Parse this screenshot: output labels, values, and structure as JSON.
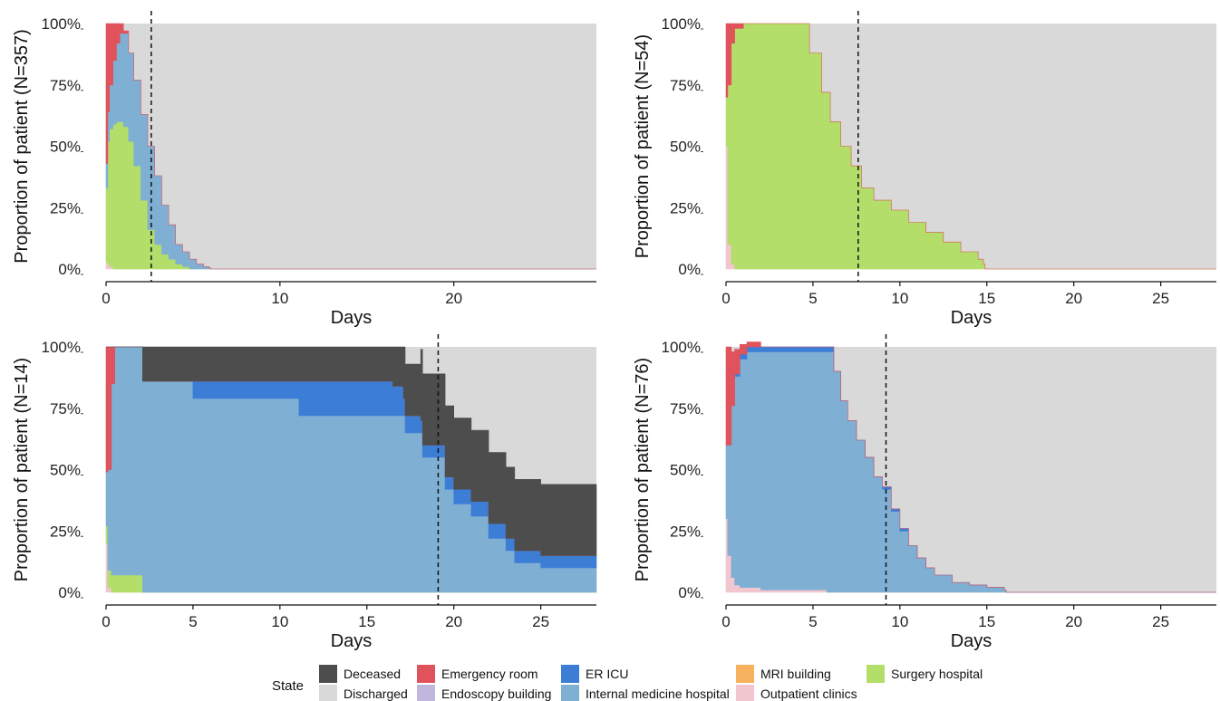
{
  "legend": {
    "title": "State",
    "items": [
      {
        "label": "Deceased",
        "color": "#4d4d4d"
      },
      {
        "label": "Discharged",
        "color": "#d9d9d9"
      },
      {
        "label": "Emergency room",
        "color": "#e0535c"
      },
      {
        "label": "Endoscopy building",
        "color": "#bfb8dc"
      },
      {
        "label": "ER ICU",
        "color": "#3c7dd6"
      },
      {
        "label": "Internal medicine hospital",
        "color": "#7fb0d3"
      },
      {
        "label": "MRI building",
        "color": "#f6b25e"
      },
      {
        "label": "Outpatient clinics",
        "color": "#f1c6cf"
      },
      {
        "label": "Surgery hospital",
        "color": "#b3de69"
      }
    ]
  },
  "chart_data": [
    {
      "type": "area",
      "ylabel": "Proportion of patient (N=357)",
      "xlabel": "Days",
      "xlim": [
        0,
        28.2
      ],
      "ylim": [
        0,
        1
      ],
      "xticks": [
        0,
        10,
        20
      ],
      "yticks": [
        "0%",
        "25%",
        "50%",
        "75%",
        "100%"
      ],
      "vline": 2.6,
      "stack_order": [
        "Outpatient clinics",
        "Surgery hospital",
        "Internal medicine hospital",
        "ER ICU",
        "Emergency room",
        "Deceased",
        "Discharged"
      ],
      "x": [
        0,
        0.1,
        0.2,
        0.4,
        0.6,
        0.8,
        1.0,
        1.3,
        1.6,
        2.0,
        2.4,
        2.8,
        3.2,
        3.6,
        4.0,
        4.4,
        4.8,
        5.2,
        5.6,
        5.9,
        6.0,
        28.2
      ],
      "stacks": {
        "Outpatient clinics": [
          0.03,
          0.02,
          0.01,
          0,
          0,
          0,
          0,
          0,
          0,
          0,
          0,
          0,
          0,
          0,
          0,
          0,
          0,
          0,
          0,
          0,
          0,
          0
        ],
        "Surgery hospital": [
          0.3,
          0.5,
          0.56,
          0.59,
          0.6,
          0.6,
          0.58,
          0.52,
          0.42,
          0.28,
          0.16,
          0.1,
          0.06,
          0.04,
          0.02,
          0.01,
          0,
          0,
          0,
          0,
          0,
          0
        ],
        "Internal medicine hospital": [
          0.1,
          0.12,
          0.18,
          0.26,
          0.32,
          0.36,
          0.38,
          0.36,
          0.35,
          0.35,
          0.34,
          0.28,
          0.2,
          0.14,
          0.08,
          0.06,
          0.04,
          0.02,
          0.01,
          0.005,
          0,
          0
        ],
        "ER ICU": [
          0,
          0,
          0,
          0,
          0,
          0,
          0,
          0,
          0,
          0,
          0,
          0,
          0,
          0,
          0,
          0,
          0,
          0,
          0,
          0,
          0,
          0
        ],
        "Emergency room": [
          0.57,
          0.36,
          0.25,
          0.15,
          0.08,
          0.04,
          0.01,
          0,
          0,
          0,
          0,
          0,
          0,
          0,
          0,
          0,
          0,
          0,
          0,
          0,
          0,
          0
        ],
        "Deceased": [
          0,
          0,
          0,
          0,
          0,
          0,
          0,
          0,
          0,
          0,
          0,
          0,
          0,
          0,
          0,
          0,
          0,
          0,
          0,
          0,
          0,
          0
        ]
      }
    },
    {
      "type": "area",
      "ylabel": "Proportion of patient (N=54)",
      "xlabel": "Days",
      "xlim": [
        0,
        28.2
      ],
      "ylim": [
        0,
        1
      ],
      "xticks": [
        0,
        5,
        10,
        15,
        20,
        25
      ],
      "yticks": [
        "0%",
        "25%",
        "50%",
        "75%",
        "100%"
      ],
      "vline": 7.6,
      "stack_order": [
        "Outpatient clinics",
        "Surgery hospital",
        "Internal medicine hospital",
        "ER ICU",
        "Emergency room",
        "Deceased",
        "Discharged"
      ],
      "x": [
        0,
        0.1,
        0.3,
        0.5,
        1.0,
        2.0,
        3.0,
        4.0,
        4.8,
        5.5,
        6.0,
        6.6,
        7.2,
        7.8,
        8.5,
        9.5,
        10.5,
        11.5,
        12.5,
        13.5,
        14.5,
        14.8,
        14.9,
        28.2
      ],
      "stacks": {
        "Outpatient clinics": [
          0.5,
          0.1,
          0.02,
          0,
          0,
          0,
          0,
          0,
          0,
          0,
          0,
          0,
          0,
          0,
          0,
          0,
          0,
          0,
          0,
          0,
          0,
          0,
          0,
          0
        ],
        "Surgery hospital": [
          0.2,
          0.65,
          0.9,
          0.98,
          1.0,
          1.0,
          1.0,
          1.0,
          0.88,
          0.72,
          0.6,
          0.5,
          0.42,
          0.33,
          0.28,
          0.24,
          0.19,
          0.15,
          0.11,
          0.07,
          0.04,
          0.02,
          0,
          0
        ],
        "Internal medicine hospital": [
          0,
          0,
          0,
          0,
          0,
          0,
          0,
          0,
          0,
          0,
          0,
          0,
          0,
          0,
          0,
          0,
          0,
          0,
          0,
          0,
          0,
          0,
          0,
          0
        ],
        "ER ICU": [
          0,
          0,
          0,
          0,
          0,
          0,
          0,
          0,
          0,
          0,
          0,
          0,
          0,
          0,
          0,
          0,
          0,
          0,
          0,
          0,
          0,
          0,
          0,
          0
        ],
        "Emergency room": [
          0.3,
          0.25,
          0.08,
          0.02,
          0,
          0,
          0,
          0,
          0,
          0,
          0,
          0,
          0,
          0,
          0,
          0,
          0,
          0,
          0,
          0,
          0,
          0,
          0,
          0
        ],
        "Deceased": [
          0,
          0,
          0,
          0,
          0,
          0,
          0,
          0,
          0,
          0,
          0,
          0,
          0,
          0,
          0,
          0,
          0,
          0,
          0,
          0,
          0,
          0,
          0,
          0
        ]
      }
    },
    {
      "type": "area",
      "ylabel": "Proportion of patient (N=14)",
      "xlabel": "Days",
      "xlim": [
        0,
        28.2
      ],
      "ylim": [
        0,
        1
      ],
      "xticks": [
        0,
        5,
        10,
        15,
        20,
        25
      ],
      "yticks": [
        "0%",
        "25%",
        "50%",
        "75%",
        "100%"
      ],
      "vline": 19.1,
      "stack_order": [
        "Outpatient clinics",
        "Surgery hospital",
        "Internal medicine hospital",
        "ER ICU",
        "Emergency room",
        "Deceased",
        "Discharged"
      ],
      "x": [
        0,
        0.1,
        0.3,
        0.5,
        1.0,
        1.5,
        2.0,
        2.1,
        4.9,
        5.0,
        11.0,
        11.1,
        15.5,
        16.0,
        16.5,
        17.1,
        17.2,
        18.1,
        18.2,
        19.0,
        19.5,
        20.0,
        21.0,
        22.0,
        23.0,
        23.5,
        25.0,
        28.0,
        28.2
      ],
      "stacks": {
        "Outpatient clinics": [
          0.2,
          0.02,
          0,
          0,
          0,
          0,
          0,
          0,
          0,
          0,
          0,
          0,
          0,
          0,
          0,
          0,
          0,
          0,
          0,
          0,
          0,
          0,
          0,
          0,
          0,
          0,
          0,
          0,
          0
        ],
        "Surgery hospital": [
          0.07,
          0.07,
          0.07,
          0.07,
          0.07,
          0.07,
          0.07,
          0,
          0,
          0,
          0,
          0,
          0,
          0,
          0,
          0,
          0,
          0,
          0,
          0,
          0,
          0,
          0,
          0,
          0,
          0,
          0,
          0,
          0
        ],
        "Internal medicine hospital": [
          0.22,
          0.41,
          0.78,
          0.93,
          0.93,
          0.93,
          0.93,
          0.86,
          0.86,
          0.79,
          0.79,
          0.72,
          0.72,
          0.72,
          0.72,
          0.72,
          0.65,
          0.65,
          0.55,
          0.55,
          0.42,
          0.36,
          0.31,
          0.22,
          0.17,
          0.12,
          0.1,
          0.1,
          0.07
        ],
        "ER ICU": [
          0,
          0,
          0,
          0,
          0,
          0,
          0,
          0,
          0,
          0.07,
          0.07,
          0.14,
          0.14,
          0.14,
          0.12,
          0.07,
          0.07,
          0.05,
          0.05,
          0.05,
          0.05,
          0.06,
          0.06,
          0.06,
          0.05,
          0.05,
          0.05,
          0.05,
          0
        ],
        "Emergency room": [
          0.51,
          0.5,
          0.15,
          0,
          0,
          0,
          0,
          0,
          0,
          0,
          0,
          0,
          0,
          0,
          0,
          0,
          0,
          0,
          0,
          0,
          0,
          0,
          0,
          0,
          0,
          0,
          0,
          0,
          0
        ],
        "Deceased": [
          0,
          0,
          0,
          0,
          0,
          0,
          0,
          0.14,
          0.14,
          0.14,
          0.14,
          0.14,
          0.14,
          0.14,
          0.16,
          0.21,
          0.21,
          0.29,
          0.29,
          0.29,
          0.29,
          0.29,
          0.29,
          0.29,
          0.29,
          0.29,
          0.29,
          0.29,
          0.36
        ]
      }
    },
    {
      "type": "area",
      "ylabel": "Proportion of patient (N=76)",
      "xlabel": "Days",
      "xlim": [
        0,
        28.2
      ],
      "ylim": [
        0,
        1
      ],
      "xticks": [
        0,
        5,
        10,
        15,
        20,
        25
      ],
      "yticks": [
        "0%",
        "25%",
        "50%",
        "75%",
        "100%"
      ],
      "vline": 9.2,
      "stack_order": [
        "Outpatient clinics",
        "Surgery hospital",
        "Internal medicine hospital",
        "ER ICU",
        "Emergency room",
        "Deceased",
        "Discharged"
      ],
      "x": [
        0,
        0.1,
        0.3,
        0.5,
        0.8,
        1.2,
        2.0,
        3.0,
        4.0,
        5.0,
        5.8,
        6.2,
        6.6,
        7.0,
        7.5,
        8.0,
        8.5,
        9.0,
        9.5,
        10.0,
        10.5,
        11.0,
        11.5,
        12.0,
        13.0,
        14.0,
        15.0,
        16.0,
        16.1,
        28.2
      ],
      "stacks": {
        "Outpatient clinics": [
          0.3,
          0.15,
          0.06,
          0.03,
          0.02,
          0.02,
          0.01,
          0.01,
          0.01,
          0.01,
          0,
          0,
          0,
          0,
          0,
          0,
          0,
          0,
          0,
          0,
          0,
          0,
          0,
          0,
          0,
          0,
          0,
          0,
          0,
          0
        ],
        "Surgery hospital": [
          0,
          0,
          0,
          0,
          0,
          0,
          0,
          0,
          0,
          0,
          0,
          0,
          0,
          0,
          0,
          0,
          0,
          0,
          0,
          0,
          0,
          0,
          0,
          0,
          0,
          0,
          0,
          0,
          0,
          0
        ],
        "Internal medicine hospital": [
          0.3,
          0.45,
          0.7,
          0.85,
          0.93,
          0.96,
          0.97,
          0.97,
          0.97,
          0.97,
          0.98,
          0.9,
          0.78,
          0.7,
          0.62,
          0.55,
          0.47,
          0.42,
          0.33,
          0.25,
          0.19,
          0.14,
          0.1,
          0.07,
          0.04,
          0.03,
          0.02,
          0.01,
          0,
          0
        ],
        "ER ICU": [
          0,
          0,
          0,
          0.01,
          0.02,
          0.02,
          0.02,
          0.02,
          0.02,
          0.02,
          0.02,
          0,
          0,
          0,
          0,
          0,
          0,
          0.01,
          0.01,
          0.01,
          0,
          0,
          0,
          0,
          0,
          0,
          0,
          0,
          0,
          0
        ],
        "Emergency room": [
          0.4,
          0.4,
          0.22,
          0.1,
          0.04,
          0.02,
          0,
          0,
          0,
          0,
          0,
          0,
          0,
          0,
          0,
          0,
          0,
          0,
          0,
          0,
          0,
          0,
          0,
          0,
          0,
          0,
          0,
          0,
          0,
          0
        ],
        "Deceased": [
          0,
          0,
          0,
          0,
          0,
          0,
          0,
          0,
          0,
          0,
          0,
          0,
          0,
          0,
          0,
          0,
          0,
          0,
          0,
          0,
          0,
          0,
          0,
          0,
          0,
          0,
          0,
          0,
          0,
          0
        ]
      }
    }
  ]
}
